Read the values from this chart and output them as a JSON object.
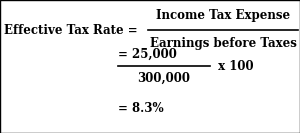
{
  "background_color": "#ffffff",
  "border_color": "#000000",
  "line1_left": "Effective Tax Rate = ",
  "line1_numerator": "Income Tax Expense",
  "line1_denominator": "Earnings before Taxes",
  "line2_num": "= 25,000",
  "line2_denom": "300,000",
  "line2_suffix": " x 100",
  "line3": "= 8.3%",
  "font_size": 8.5,
  "text_color": "#000000",
  "fig_width": 3.0,
  "fig_height": 1.33,
  "dpi": 100
}
